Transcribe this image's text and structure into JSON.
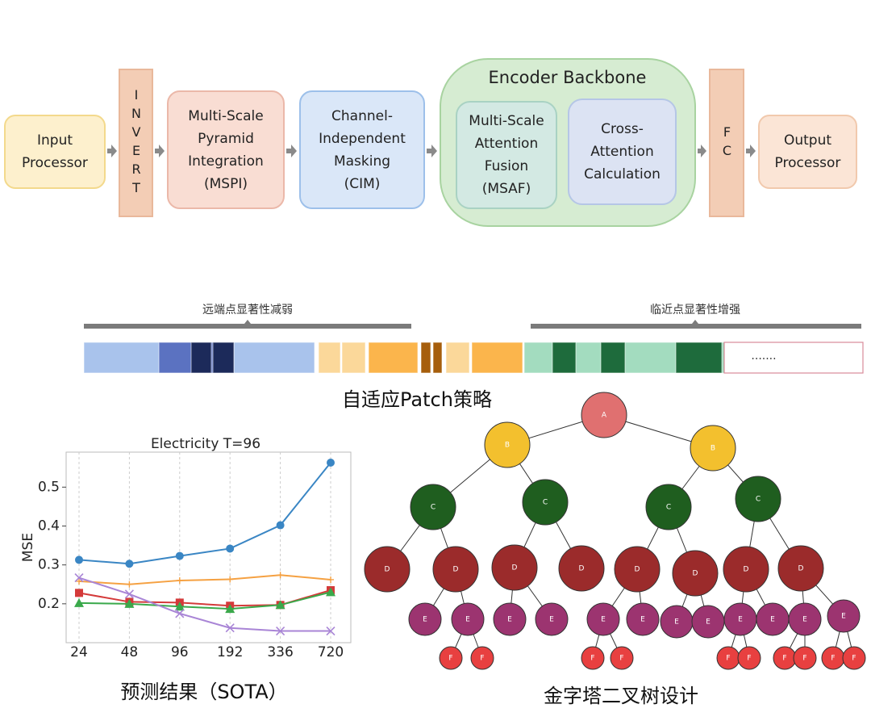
{
  "pipeline": {
    "input": [
      "Input",
      "Processor"
    ],
    "invert": "INVERT",
    "mspi": [
      "Multi-Scale",
      "Pyramid",
      "Integration",
      "(MSPI)"
    ],
    "cim": [
      "Channel-",
      "Independent",
      "Masking",
      "(CIM)"
    ],
    "encoder": {
      "title": "Encoder Backbone",
      "msaf": [
        "Multi-Scale",
        "Attention",
        "Fusion",
        "(MSAF)"
      ],
      "cross": [
        "Cross-",
        "Attention",
        "Calculation"
      ]
    },
    "fc": "FC",
    "output": [
      "Output",
      "Processor"
    ]
  },
  "patch": {
    "left_label": "远端点显著性减弱",
    "right_label": "临近点显著性增强",
    "ellipsis": ".......",
    "caption": "自适应Patch策略"
  },
  "chart_data": {
    "type": "line",
    "title": "Electricity T=96",
    "ylabel": "MSE",
    "categories": [
      "24",
      "48",
      "96",
      "192",
      "336",
      "720"
    ],
    "series": [
      {
        "color": "#3a86c4",
        "marker": "circle",
        "values": [
          0.313,
          0.303,
          0.323,
          0.342,
          0.402,
          0.563
        ]
      },
      {
        "color": "#f5a142",
        "marker": "plus",
        "values": [
          0.258,
          0.25,
          0.26,
          0.263,
          0.274,
          0.262
        ]
      },
      {
        "color": "#d43a3a",
        "marker": "square",
        "values": [
          0.228,
          0.205,
          0.203,
          0.195,
          0.197,
          0.235
        ]
      },
      {
        "color": "#3aa94b",
        "marker": "triangle",
        "values": [
          0.202,
          0.2,
          0.193,
          0.187,
          0.197,
          0.23
        ]
      },
      {
        "color": "#a985d6",
        "marker": "x",
        "values": [
          0.267,
          0.225,
          0.175,
          0.138,
          0.13,
          0.13
        ]
      }
    ],
    "ylim": [
      0.1,
      0.59
    ],
    "yticks": [
      0.2,
      0.3,
      0.4,
      0.5
    ],
    "grid": "x"
  },
  "chart_caption": "预测结果（SOTA）",
  "tree": {
    "nodes": [
      "A",
      "B",
      "B",
      "C",
      "C",
      "C",
      "C",
      "D",
      "D",
      "D",
      "D",
      "D",
      "D",
      "D",
      "D",
      "E",
      "E",
      "E",
      "E",
      "E",
      "E",
      "E",
      "E",
      "E",
      "E",
      "E",
      "E",
      "F",
      "F",
      "F",
      "F",
      "F",
      "F",
      "F",
      "F",
      "F",
      "F"
    ],
    "caption": "金字塔二叉树设计"
  }
}
